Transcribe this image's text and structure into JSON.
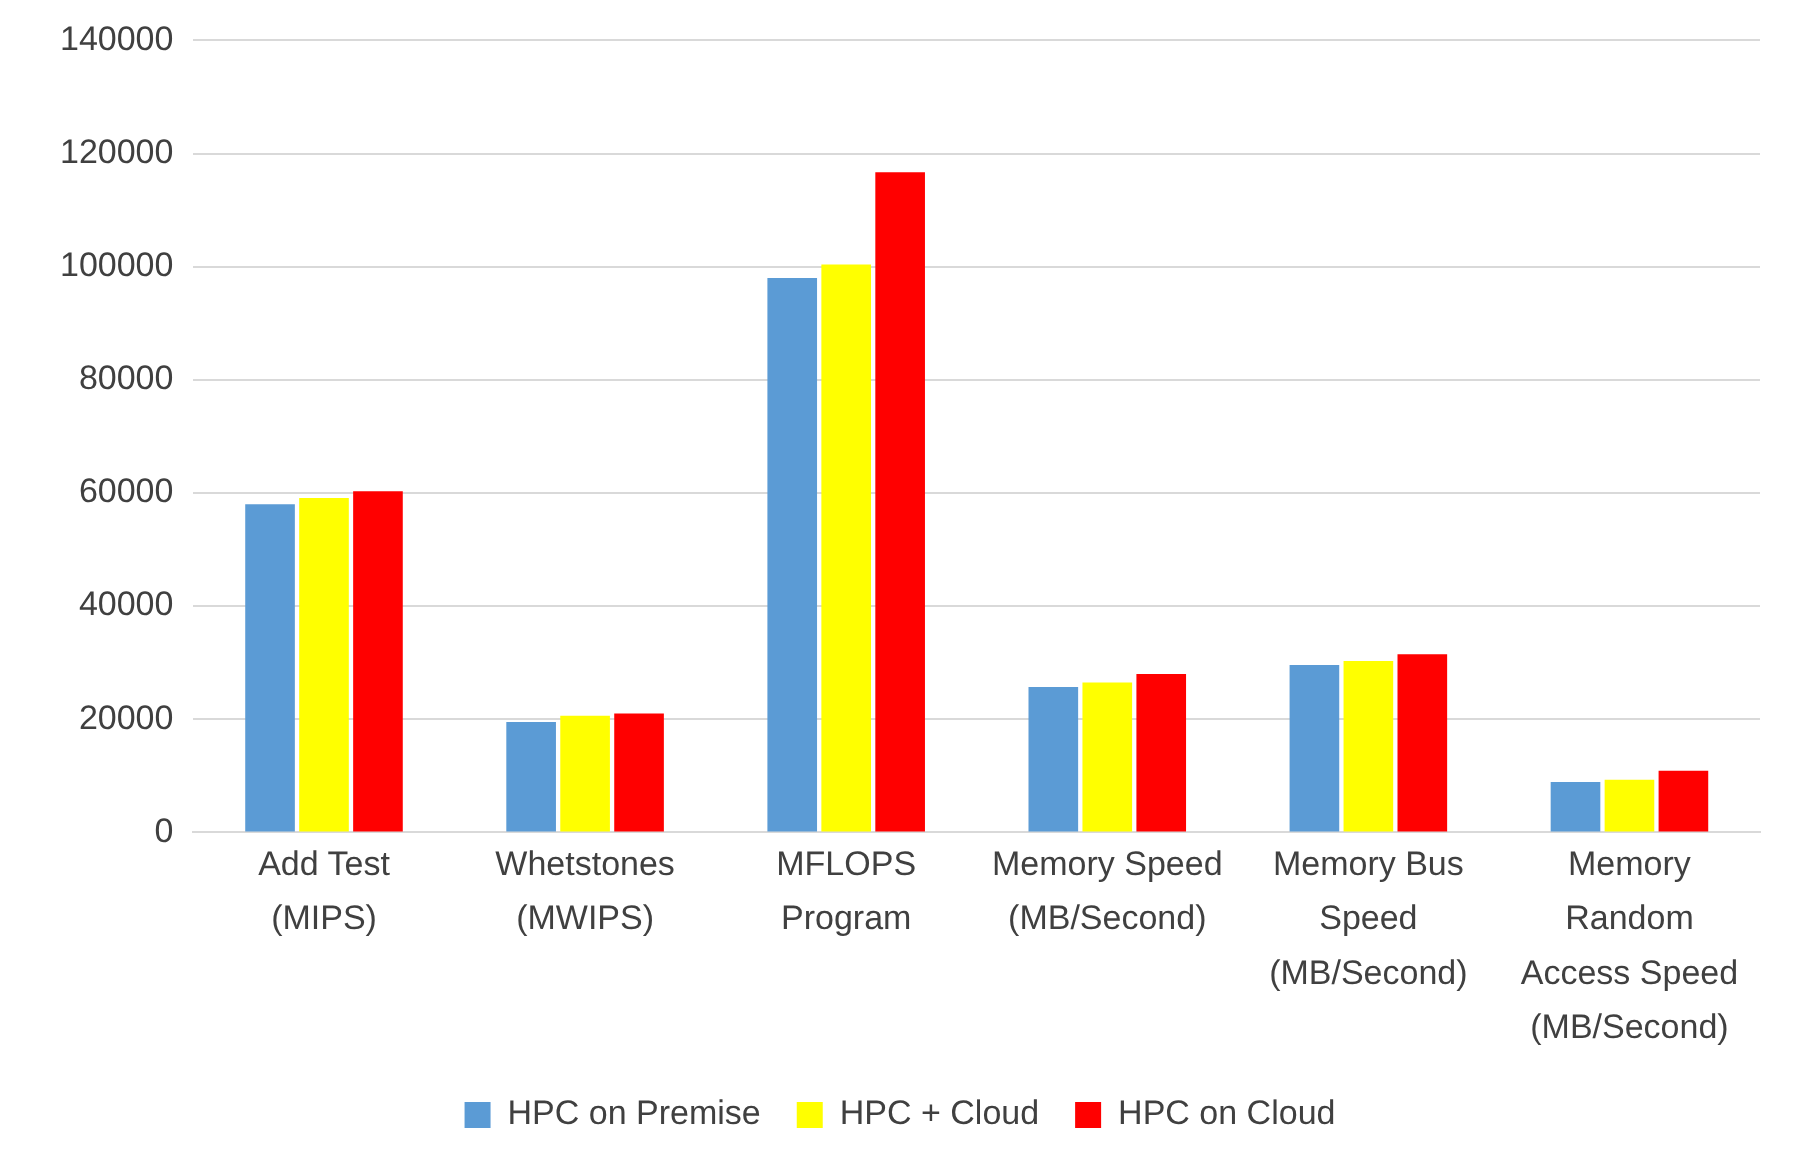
{
  "chart_data": {
    "type": "bar",
    "categories": [
      "Add Test (MIPS)",
      "Whetstones (MWIPS)",
      "MFLOPS Program",
      "Memory Speed (MB/Second)",
      "Memory Bus Speed (MB/Second)",
      "Memory Random Access Speed (MB/Second)"
    ],
    "series": [
      {
        "name": "HPC on Premise",
        "color": "#5b9bd5",
        "values": [
          58000,
          19500,
          98000,
          25700,
          29600,
          8900
        ]
      },
      {
        "name": "HPC + Cloud",
        "color": "#ffff00",
        "values": [
          59100,
          20600,
          100400,
          26500,
          30300,
          9300
        ]
      },
      {
        "name": "HPC on Cloud",
        "color": "#ff0000",
        "values": [
          60300,
          21000,
          116700,
          28000,
          31500,
          10900
        ]
      }
    ],
    "ylim": [
      0,
      140000
    ],
    "yticks": [
      0,
      20000,
      40000,
      60000,
      80000,
      100000,
      120000,
      140000
    ],
    "grid": "y",
    "legend": "bottom"
  }
}
